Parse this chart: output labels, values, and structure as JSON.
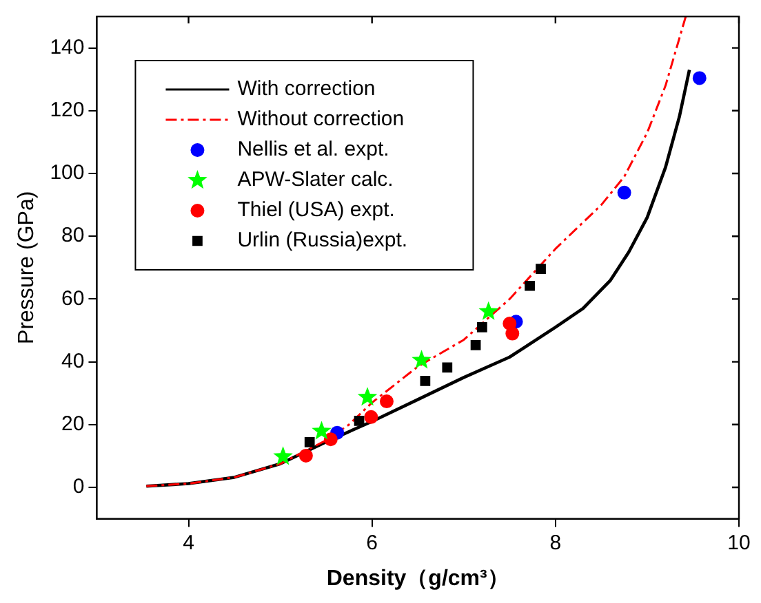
{
  "chart_data": {
    "type": "scatter",
    "xlabel": "Density（g/cm³）",
    "ylabel": "Pressure (GPa)",
    "xlim": [
      3,
      10
    ],
    "xticks": [
      4,
      6,
      8,
      10
    ],
    "ylim": [
      -10,
      150
    ],
    "yticks": [
      0,
      20,
      40,
      60,
      80,
      100,
      120,
      140
    ],
    "grid": false,
    "legend": "top left",
    "series": [
      {
        "name": "With correction",
        "type": "line",
        "color": "#000000",
        "line_style": "solid",
        "marker": "none",
        "x": [
          3.54,
          4,
          4.5,
          5,
          5.5,
          6,
          6.5,
          7,
          7.5,
          8,
          8.3,
          8.6,
          8.8,
          9.0,
          9.2,
          9.35,
          9.46
        ],
        "values": [
          0.4,
          1.2,
          3.2,
          7.5,
          14.5,
          21,
          28,
          35,
          41.5,
          51,
          57,
          66,
          75,
          86,
          102,
          118,
          133
        ]
      },
      {
        "name": "Without correction",
        "type": "line",
        "color": "#ff0000",
        "line_style": "dashed",
        "marker": "none",
        "x": [
          3.54,
          4,
          4.5,
          5,
          5.5,
          5.75,
          6,
          6.5,
          7,
          7.5,
          8,
          8.5,
          8.75,
          9,
          9.2,
          9.42
        ],
        "values": [
          0.4,
          1.2,
          3.2,
          7.5,
          15,
          20,
          27,
          38.5,
          47,
          60,
          76,
          90,
          99,
          113,
          128,
          150
        ]
      },
      {
        "name": "Nellis et al. expt.",
        "type": "scatter",
        "color": "#0000ff",
        "marker": "circle",
        "x": [
          5.62,
          7.57,
          8.75,
          9.57
        ],
        "values": [
          17.4,
          52.8,
          93.9,
          130.4
        ]
      },
      {
        "name": "APW-Slater calc.",
        "type": "scatter",
        "color": "#00ff00",
        "marker": "star",
        "x": [
          5.03,
          5.45,
          5.95,
          6.54,
          7.27
        ],
        "values": [
          9.8,
          17.9,
          28.7,
          40.5,
          56.0
        ]
      },
      {
        "name": "Thiel (USA) expt.",
        "type": "scatter",
        "color": "#ff0000",
        "marker": "circle",
        "x": [
          5.28,
          5.55,
          5.99,
          6.16,
          7.5,
          7.53
        ],
        "values": [
          10.1,
          15.3,
          22.4,
          27.4,
          52.2,
          49.0
        ]
      },
      {
        "name": "Urlin (Russia)expt.",
        "type": "scatter",
        "color": "#000000",
        "marker": "square",
        "x": [
          5.32,
          5.86,
          6.58,
          6.82,
          7.13,
          7.2,
          7.72,
          7.84
        ],
        "values": [
          14.4,
          21.2,
          33.9,
          38.2,
          45.3,
          51.0,
          64.2,
          69.6
        ]
      }
    ]
  }
}
